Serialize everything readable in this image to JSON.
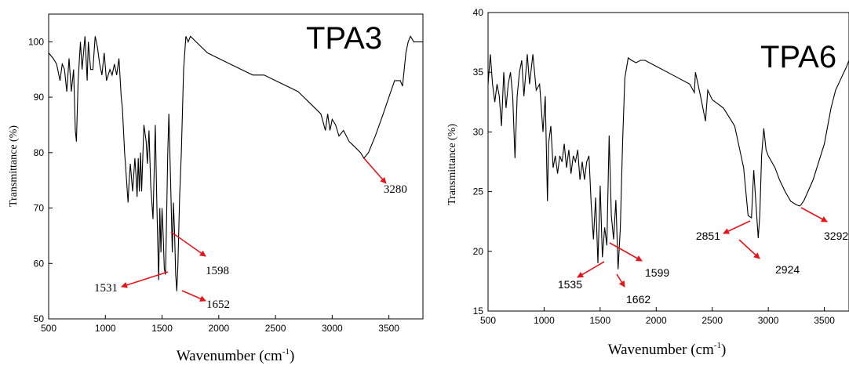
{
  "chart_data": [
    {
      "type": "line",
      "title": "TPA3",
      "xlabel": "Wavenumber (cm",
      "xlabel_sup": "-1",
      "xlabel_close": ")",
      "ylabel": "Transmittance (%)",
      "xlim": [
        500,
        3800
      ],
      "ylim": [
        50,
        105
      ],
      "xticks": [
        500,
        1000,
        1500,
        2000,
        2500,
        3000,
        3500
      ],
      "yticks": [
        50,
        60,
        70,
        80,
        90,
        100
      ],
      "grid": false,
      "series": [
        {
          "x": [
            500,
            540,
            570,
            600,
            620,
            640,
            660,
            680,
            700,
            720,
            735,
            745,
            760,
            780,
            795,
            820,
            840,
            850,
            870,
            890,
            910,
            930,
            950,
            970,
            990,
            1010,
            1040,
            1060,
            1080,
            1100,
            1120,
            1140,
            1150,
            1160,
            1170,
            1180,
            1200,
            1210,
            1220,
            1240,
            1260,
            1270,
            1280,
            1290,
            1300,
            1310,
            1320,
            1340,
            1360,
            1370,
            1385,
            1400,
            1420,
            1440,
            1455,
            1470,
            1480,
            1490,
            1500,
            1510,
            1520,
            1530,
            1540,
            1550,
            1560,
            1575,
            1590,
            1600,
            1610,
            1620,
            1630,
            1640,
            1655,
            1670,
            1690,
            1710,
            1730,
            1750,
            1800,
            1850,
            1900,
            2000,
            2100,
            2200,
            2300,
            2400,
            2500,
            2600,
            2700,
            2800,
            2900,
            2940,
            2960,
            2980,
            3000,
            3030,
            3060,
            3100,
            3150,
            3200,
            3250,
            3280,
            3320,
            3380,
            3450,
            3500,
            3550,
            3600,
            3620,
            3650,
            3670,
            3690,
            3720,
            3760,
            3800
          ],
          "y": [
            98,
            97,
            96,
            93,
            96,
            95,
            91,
            97,
            91,
            95,
            84,
            82,
            93,
            100,
            95,
            101,
            93,
            100,
            95,
            95,
            101,
            99,
            96,
            94,
            98,
            93,
            95,
            94,
            96,
            94,
            97,
            90,
            88,
            84,
            80,
            77,
            71,
            75,
            78,
            73,
            79,
            76,
            72,
            79,
            73,
            80,
            73,
            85,
            82,
            78,
            84,
            74,
            68,
            85,
            70,
            57,
            70,
            62,
            70,
            65,
            59,
            58,
            68,
            80,
            87,
            75,
            62,
            71,
            66,
            58,
            55,
            60,
            72,
            80,
            95,
            101,
            100,
            101,
            100,
            99,
            98,
            97,
            96,
            95,
            94,
            94,
            93,
            92,
            91,
            89,
            87,
            84,
            87,
            84,
            86,
            85,
            83,
            84,
            82,
            81,
            80,
            79,
            80,
            83,
            87,
            90,
            93,
            93,
            92,
            98,
            100,
            101,
            100,
            100,
            100
          ]
        }
      ],
      "annotations": [
        {
          "label": "3280",
          "x": 3280,
          "y": 79
        },
        {
          "label": "1598",
          "x": 1598,
          "y": 66
        },
        {
          "label": "1531",
          "x": 1531,
          "y": 58
        },
        {
          "label": "1652",
          "x": 1652,
          "y": 55
        }
      ]
    },
    {
      "type": "line",
      "title": "TPA6",
      "xlabel": "Wavenumber (cm",
      "xlabel_sup": "-1",
      "xlabel_close": ")",
      "ylabel": "Transmittance (%)",
      "xlim": [
        500,
        3720
      ],
      "ylim": [
        15,
        40
      ],
      "xticks": [
        500,
        1000,
        1500,
        2000,
        2500,
        3000,
        3500
      ],
      "yticks": [
        15,
        20,
        25,
        30,
        35,
        40
      ],
      "grid": false,
      "series": [
        {
          "x": [
            500,
            520,
            540,
            560,
            580,
            600,
            620,
            640,
            660,
            680,
            700,
            720,
            740,
            760,
            780,
            800,
            820,
            850,
            870,
            900,
            930,
            960,
            990,
            1010,
            1030,
            1040,
            1060,
            1080,
            1100,
            1120,
            1140,
            1160,
            1180,
            1200,
            1220,
            1240,
            1260,
            1280,
            1300,
            1320,
            1340,
            1360,
            1380,
            1400,
            1420,
            1440,
            1460,
            1480,
            1500,
            1520,
            1540,
            1560,
            1580,
            1600,
            1620,
            1640,
            1660,
            1680,
            1700,
            1720,
            1750,
            1780,
            1820,
            1860,
            1900,
            2000,
            2100,
            2200,
            2300,
            2340,
            2350,
            2400,
            2440,
            2460,
            2500,
            2600,
            2700,
            2780,
            2820,
            2850,
            2870,
            2890,
            2910,
            2924,
            2940,
            2960,
            2980,
            3000,
            3030,
            3060,
            3100,
            3150,
            3200,
            3250,
            3280,
            3292,
            3320,
            3400,
            3500,
            3560,
            3600,
            3650,
            3700,
            3720
          ],
          "y": [
            34,
            36.5,
            34,
            32.5,
            34,
            33,
            30.5,
            35,
            32,
            34,
            35,
            33,
            27.8,
            33,
            35,
            36,
            33,
            36.5,
            34,
            36.5,
            33.5,
            34,
            30,
            33,
            24.2,
            29,
            30.5,
            27,
            28,
            26.5,
            28,
            27.5,
            29,
            27,
            28.5,
            26.5,
            28,
            27.5,
            28.5,
            26,
            27.5,
            26,
            27.5,
            28,
            24,
            21,
            24.5,
            19,
            25.5,
            19.5,
            22,
            20.5,
            29.7,
            23,
            21,
            24.3,
            18.5,
            22,
            29,
            34.5,
            36.2,
            36,
            35.8,
            36,
            36,
            35.5,
            35,
            34.5,
            34,
            33.3,
            35,
            32.8,
            30.9,
            33.5,
            32.7,
            32,
            30.5,
            27,
            23,
            22.8,
            26.8,
            24,
            21.1,
            23,
            28,
            30.3,
            28.5,
            28,
            27.5,
            27,
            26,
            25,
            24.2,
            23.9,
            23.8,
            23.9,
            24.3,
            26,
            29,
            32,
            33.5,
            34.5,
            35.5,
            36
          ]
        }
      ],
      "annotations": [
        {
          "label": "2851",
          "x": 2851,
          "y": 22.8
        },
        {
          "label": "2924",
          "x": 2924,
          "y": 21.1
        },
        {
          "label": "3292",
          "x": 3292,
          "y": 23.8
        },
        {
          "label": "1599",
          "x": 1599,
          "y": 21
        },
        {
          "label": "1535",
          "x": 1535,
          "y": 19.2
        },
        {
          "label": "1662",
          "x": 1662,
          "y": 18.5
        }
      ]
    }
  ]
}
